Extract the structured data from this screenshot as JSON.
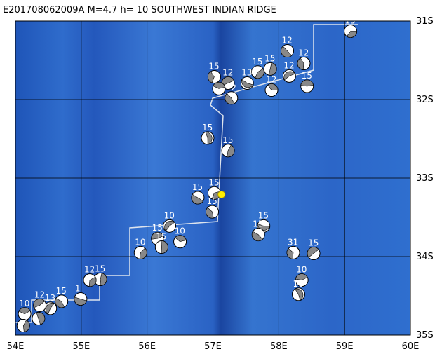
{
  "chart_data": {
    "type": "map",
    "title": "E201708062009A M=4.7 h= 10 SOUTHWEST INDIAN RIDGE",
    "xlim": [
      54,
      60
    ],
    "ylim": [
      31,
      35
    ],
    "xticks": [
      {
        "value": 54,
        "label": "54E"
      },
      {
        "value": 55,
        "label": "55E"
      },
      {
        "value": 56,
        "label": "56E"
      },
      {
        "value": 57,
        "label": "57E"
      },
      {
        "value": 58,
        "label": "58E"
      },
      {
        "value": 59,
        "label": "59E"
      },
      {
        "value": 60,
        "label": "60E"
      }
    ],
    "yticks": [
      {
        "value": 31,
        "label": "31S"
      },
      {
        "value": 32,
        "label": "32S"
      },
      {
        "value": 33,
        "label": "33S"
      },
      {
        "value": 34,
        "label": "34S"
      },
      {
        "value": 35,
        "label": "35S"
      }
    ],
    "grid": true,
    "epicenter": {
      "lon": 57.13,
      "lat": 33.21,
      "color": "#ffee00"
    },
    "events": {
      "lon": [
        59.09,
        58.13,
        58.38,
        58.16,
        58.43,
        57.89,
        57.87,
        57.68,
        57.52,
        57.28,
        57.02,
        57.23,
        57.09,
        56.92,
        57.23,
        57.02,
        56.77,
        56.99,
        56.34,
        56.16,
        56.5,
        56.22,
        55.9,
        57.77,
        57.69,
        58.22,
        58.53,
        58.35,
        58.3,
        55.29,
        55.13,
        54.99,
        54.7,
        54.53,
        54.37,
        54.14,
        54.35,
        54.12
      ],
      "lat": [
        31.13,
        31.38,
        31.54,
        31.7,
        31.83,
        31.88,
        31.61,
        31.65,
        31.79,
        31.98,
        31.71,
        31.79,
        31.86,
        32.49,
        32.65,
        33.19,
        33.25,
        33.43,
        33.61,
        33.77,
        33.81,
        33.88,
        33.95,
        33.61,
        33.72,
        33.95,
        33.96,
        34.3,
        34.48,
        34.29,
        34.3,
        34.54,
        34.57,
        34.66,
        34.62,
        34.73,
        34.79,
        34.88
      ],
      "depth": [
        15,
        12,
        12,
        12,
        15,
        12,
        15,
        15,
        13,
        12,
        15,
        12,
        null,
        15,
        15,
        15,
        15,
        15,
        10,
        15,
        10,
        15,
        10,
        15,
        15,
        31,
        15,
        10,
        10,
        15,
        12,
        1,
        15,
        13,
        12,
        10,
        null,
        null
      ]
    }
  }
}
